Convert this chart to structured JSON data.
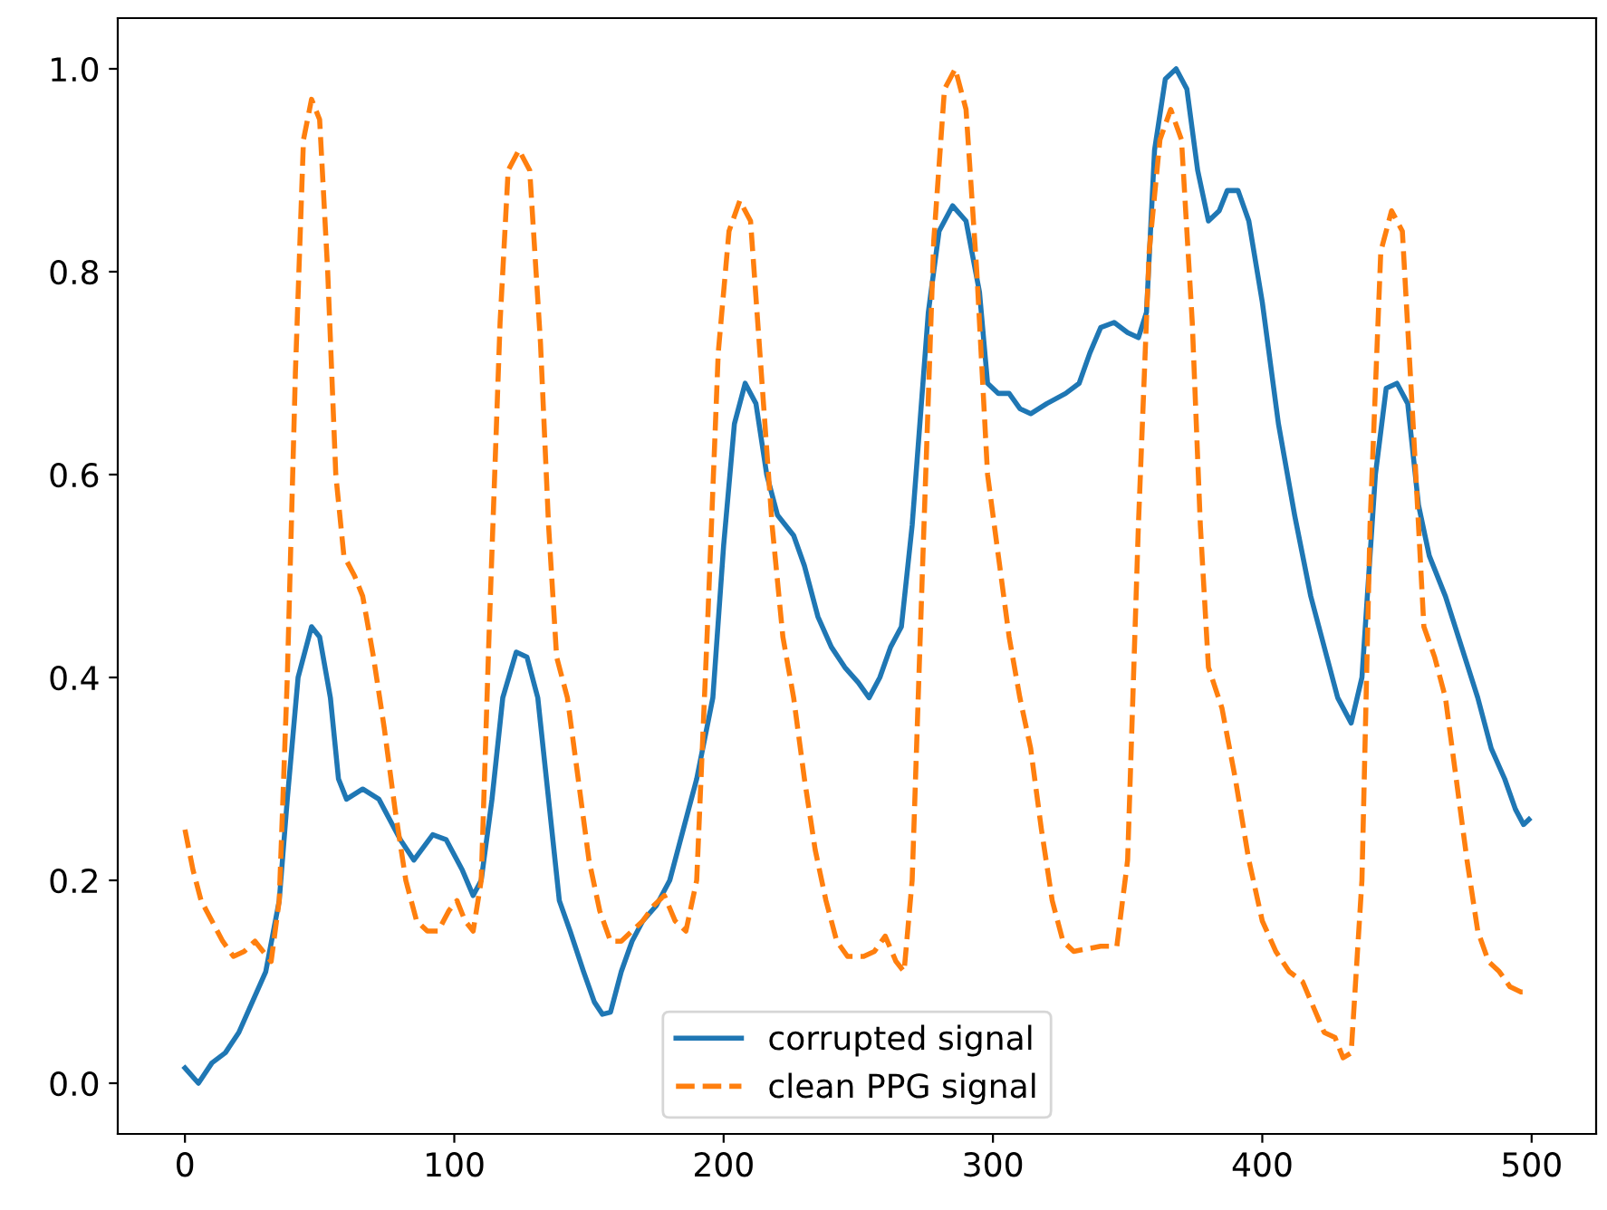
{
  "chart_data": {
    "type": "line",
    "legend": "bottom",
    "xlim": [
      -24.95,
      523.95
    ],
    "ylim": [
      -0.05,
      1.05
    ],
    "xticks": [
      0,
      100,
      200,
      300,
      400,
      500
    ],
    "yticks": [
      {
        "value": 0,
        "label": "0.0"
      },
      {
        "value": 0.2,
        "label": "0.2"
      },
      {
        "value": 0.4,
        "label": "0.4"
      },
      {
        "value": 0.6,
        "label": "0.6"
      },
      {
        "value": 0.8,
        "label": "0.8"
      },
      {
        "value": 1,
        "label": "1.0"
      }
    ],
    "series": [
      {
        "name": "corrupted signal",
        "color": "#1f77b4",
        "line_style": "solid",
        "x": [
          0,
          5,
          10,
          15,
          20,
          25,
          30,
          35,
          38,
          42,
          47,
          50,
          54,
          57,
          60,
          66,
          72,
          80,
          85,
          92,
          97,
          103,
          107,
          110,
          114,
          118,
          123,
          127,
          131,
          135,
          139,
          143,
          148,
          152,
          155,
          158,
          162,
          166,
          170,
          175,
          180,
          185,
          190,
          196,
          200,
          204,
          208,
          212,
          216,
          220,
          226,
          230,
          235,
          240,
          245,
          250,
          254,
          258,
          262,
          266,
          270,
          276,
          280,
          285,
          290,
          295,
          298,
          302,
          306,
          310,
          314,
          320,
          327,
          332,
          336,
          340,
          345,
          350,
          354,
          357,
          360,
          364,
          368,
          372,
          376,
          380,
          384,
          387,
          391,
          395,
          400,
          406,
          412,
          418,
          424,
          428,
          433,
          437,
          442,
          446,
          450,
          454,
          458,
          462,
          468,
          474,
          480,
          485,
          490,
          494,
          497,
          499
        ],
        "values": [
          0.015,
          0.0,
          0.02,
          0.03,
          0.05,
          0.08,
          0.11,
          0.18,
          0.28,
          0.4,
          0.45,
          0.44,
          0.38,
          0.3,
          0.28,
          0.29,
          0.28,
          0.24,
          0.22,
          0.245,
          0.24,
          0.21,
          0.185,
          0.2,
          0.28,
          0.38,
          0.425,
          0.42,
          0.38,
          0.28,
          0.18,
          0.15,
          0.11,
          0.08,
          0.068,
          0.07,
          0.11,
          0.14,
          0.16,
          0.175,
          0.2,
          0.25,
          0.3,
          0.38,
          0.53,
          0.65,
          0.69,
          0.67,
          0.6,
          0.56,
          0.54,
          0.51,
          0.46,
          0.43,
          0.41,
          0.395,
          0.38,
          0.4,
          0.43,
          0.45,
          0.55,
          0.76,
          0.84,
          0.865,
          0.85,
          0.78,
          0.69,
          0.68,
          0.68,
          0.665,
          0.66,
          0.67,
          0.68,
          0.69,
          0.72,
          0.745,
          0.75,
          0.74,
          0.735,
          0.76,
          0.92,
          0.99,
          1.0,
          0.98,
          0.9,
          0.85,
          0.86,
          0.88,
          0.88,
          0.85,
          0.77,
          0.65,
          0.56,
          0.48,
          0.42,
          0.38,
          0.355,
          0.4,
          0.6,
          0.685,
          0.69,
          0.67,
          0.57,
          0.52,
          0.48,
          0.43,
          0.38,
          0.33,
          0.3,
          0.27,
          0.255,
          0.26
        ]
      },
      {
        "name": "clean PPG signal",
        "color": "#ff7f0e",
        "line_style": "dashed",
        "x": [
          0,
          3,
          6,
          10,
          14,
          18,
          22,
          26,
          29,
          32,
          35,
          38,
          41,
          44,
          47,
          50,
          53,
          56,
          59,
          63,
          66,
          70,
          74,
          78,
          82,
          86,
          90,
          94,
          98,
          101,
          104,
          107,
          110,
          113,
          117,
          120,
          124,
          128,
          132,
          135,
          138,
          142,
          146,
          150,
          154,
          158,
          162,
          166,
          170,
          174,
          178,
          182,
          186,
          190,
          194,
          198,
          202,
          206,
          210,
          214,
          218,
          222,
          226,
          230,
          234,
          238,
          242,
          246,
          252,
          256,
          260,
          264,
          267,
          270,
          274,
          278,
          282,
          286,
          290,
          294,
          298,
          302,
          306,
          310,
          314,
          318,
          322,
          326,
          330,
          340,
          346,
          350,
          354,
          358,
          362,
          366,
          370,
          374,
          377,
          380,
          385,
          390,
          395,
          400,
          405,
          410,
          415,
          419,
          423,
          427,
          430,
          433,
          437,
          440,
          444,
          448,
          452,
          456,
          460,
          464,
          468,
          472,
          476,
          480,
          484,
          488,
          492,
          496,
          499
        ],
        "values": [
          0.25,
          0.21,
          0.18,
          0.16,
          0.14,
          0.125,
          0.13,
          0.14,
          0.13,
          0.12,
          0.18,
          0.4,
          0.7,
          0.93,
          0.97,
          0.95,
          0.8,
          0.6,
          0.52,
          0.5,
          0.48,
          0.42,
          0.35,
          0.27,
          0.2,
          0.16,
          0.15,
          0.15,
          0.17,
          0.18,
          0.16,
          0.15,
          0.2,
          0.45,
          0.75,
          0.9,
          0.92,
          0.9,
          0.73,
          0.55,
          0.42,
          0.38,
          0.3,
          0.22,
          0.17,
          0.14,
          0.14,
          0.15,
          0.16,
          0.175,
          0.185,
          0.16,
          0.15,
          0.2,
          0.45,
          0.72,
          0.84,
          0.87,
          0.85,
          0.7,
          0.55,
          0.44,
          0.38,
          0.3,
          0.23,
          0.18,
          0.14,
          0.125,
          0.125,
          0.13,
          0.145,
          0.12,
          0.11,
          0.2,
          0.52,
          0.83,
          0.98,
          1.0,
          0.96,
          0.8,
          0.6,
          0.52,
          0.44,
          0.38,
          0.33,
          0.25,
          0.18,
          0.14,
          0.13,
          0.135,
          0.135,
          0.22,
          0.55,
          0.82,
          0.93,
          0.96,
          0.93,
          0.75,
          0.55,
          0.41,
          0.37,
          0.3,
          0.22,
          0.16,
          0.13,
          0.11,
          0.1,
          0.075,
          0.05,
          0.045,
          0.025,
          0.03,
          0.2,
          0.55,
          0.82,
          0.86,
          0.84,
          0.65,
          0.45,
          0.42,
          0.38,
          0.3,
          0.22,
          0.15,
          0.12,
          0.11,
          0.095,
          0.09,
          0.09
        ]
      }
    ]
  }
}
